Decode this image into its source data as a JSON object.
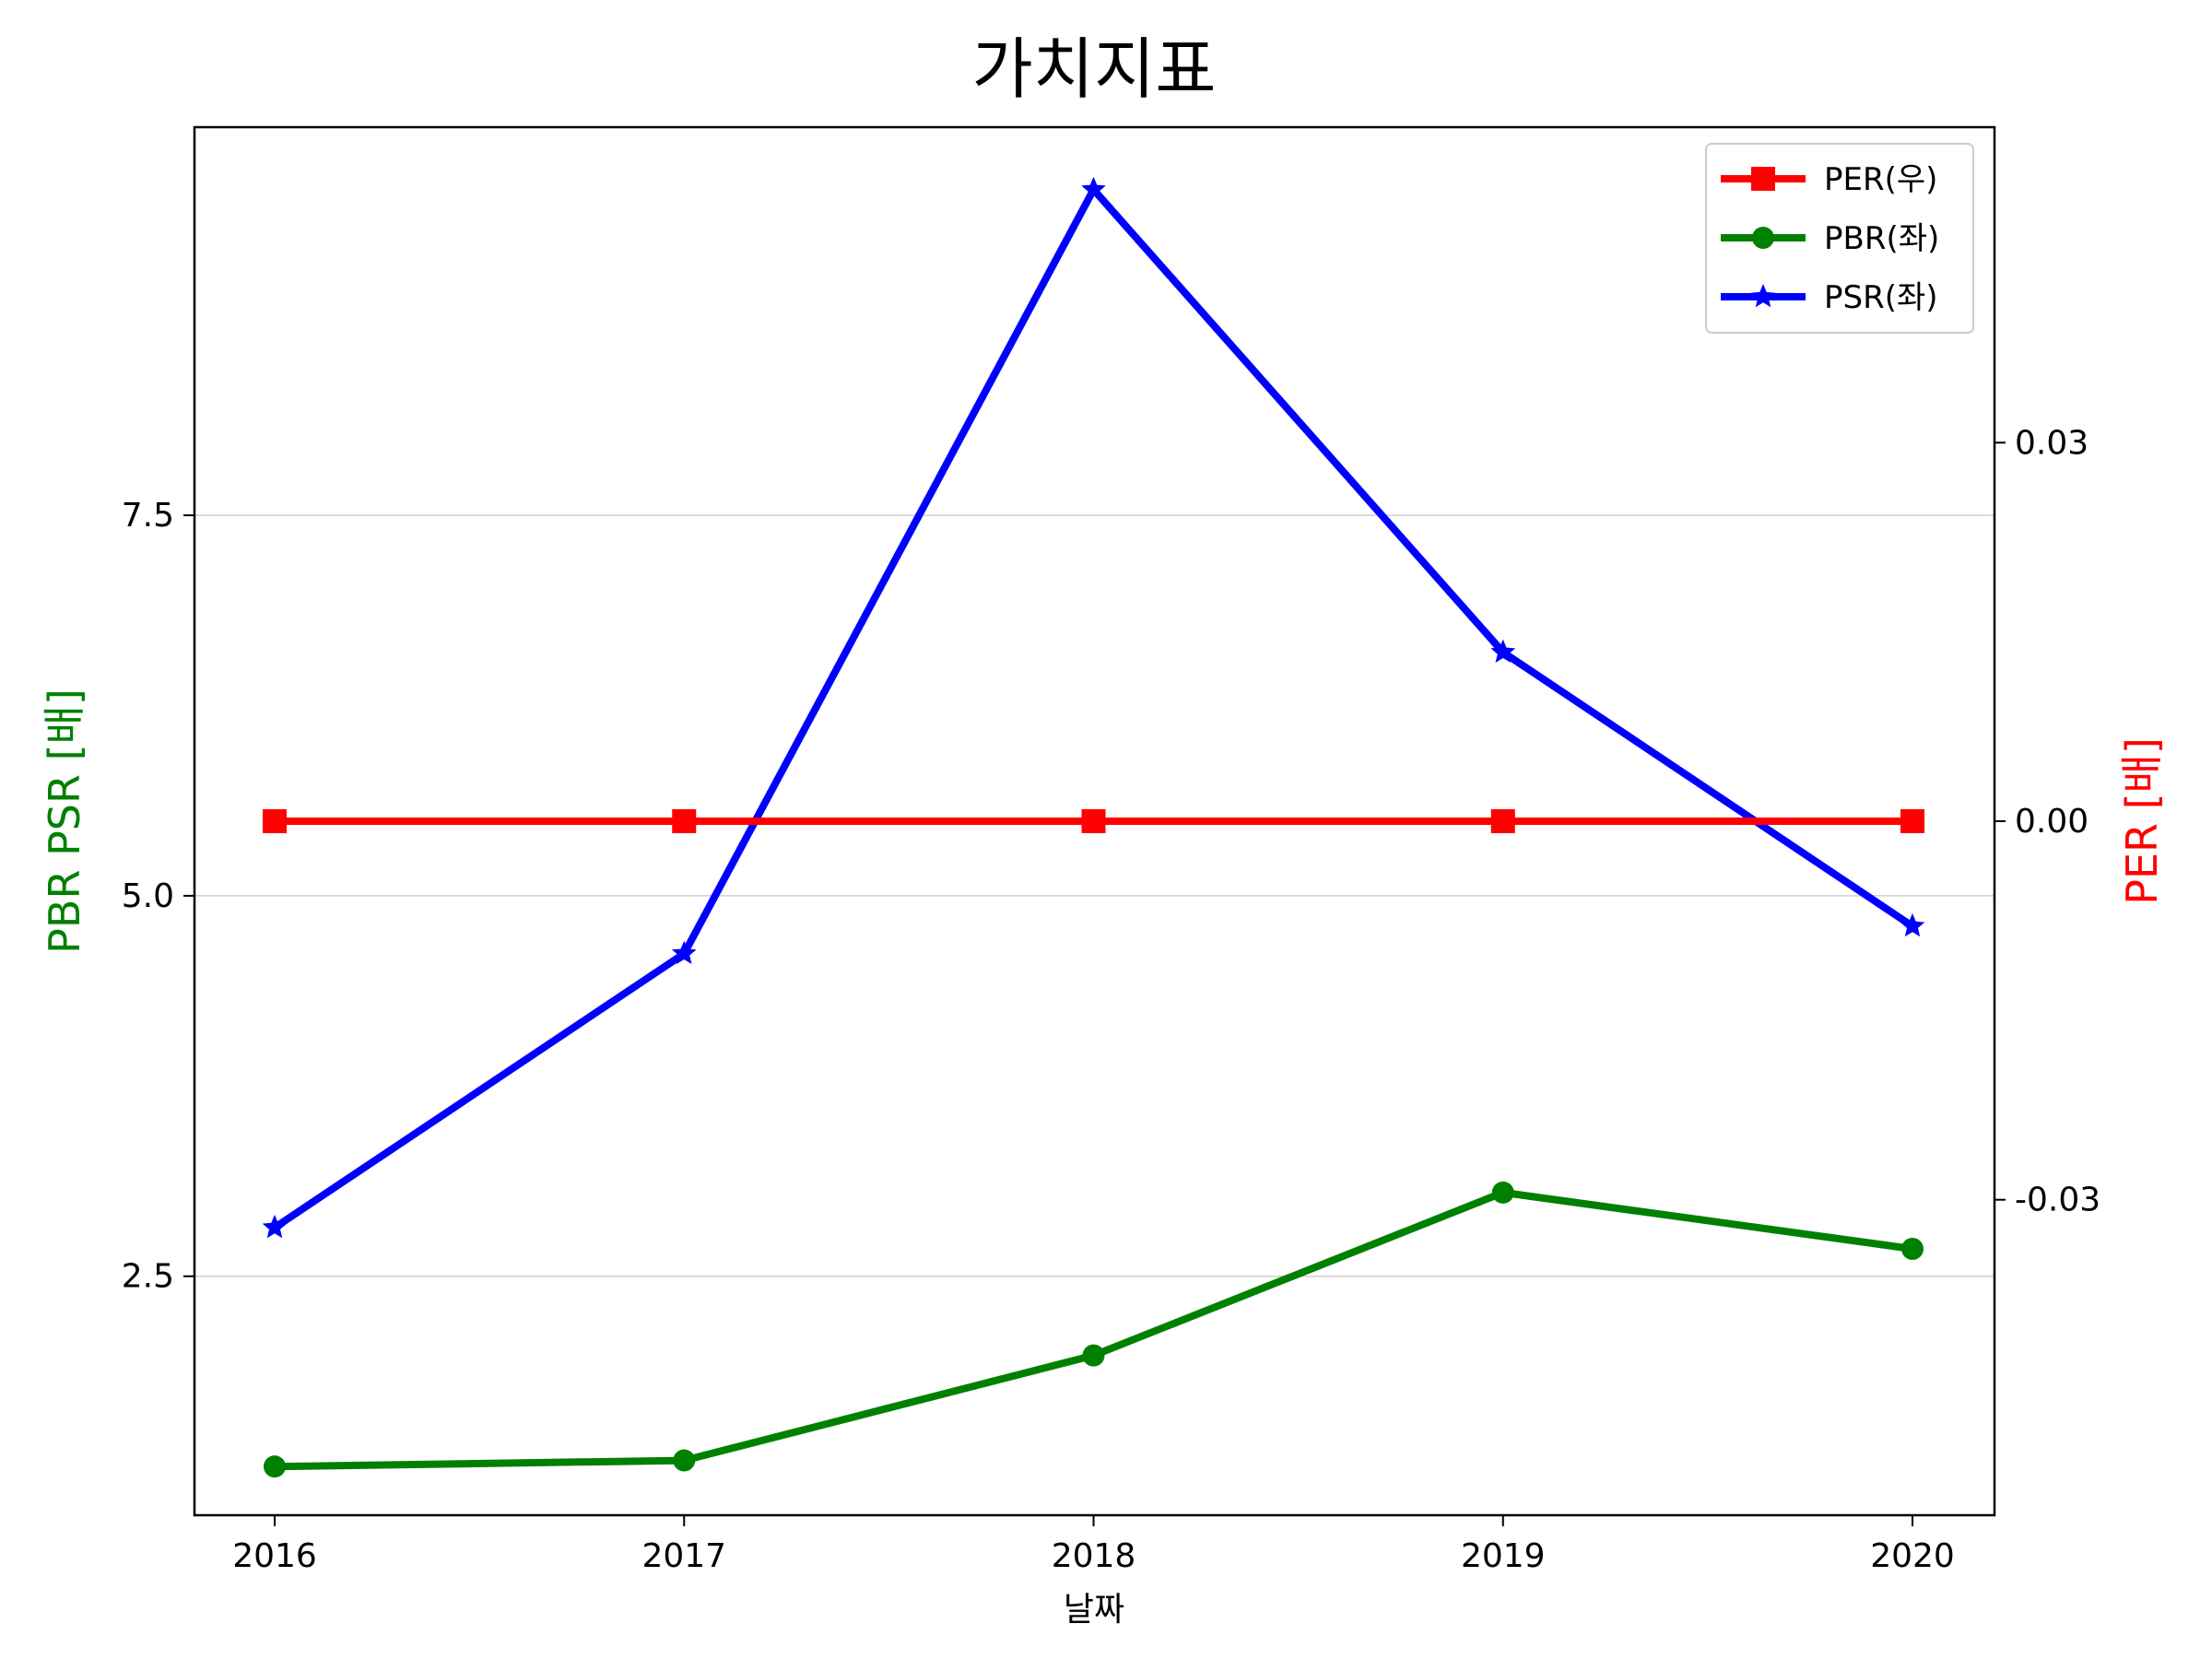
{
  "chart_data": {
    "type": "line",
    "title": "가치지표",
    "xlabel": "날짜",
    "ylabel_left": "PBR PSR [배]",
    "ylabel_right": "PER [배]",
    "ylabel_left_color": "#008000",
    "ylabel_right_color": "#ff0000",
    "categories": [
      "2016",
      "2017",
      "2018",
      "2019",
      "2020"
    ],
    "left_axis": {
      "ylim": [
        0.93,
        10.05
      ],
      "ticks": [
        2.5,
        5.0,
        7.5
      ],
      "tick_labels": [
        "2.5",
        "5.0",
        "7.5"
      ],
      "grid": true
    },
    "right_axis": {
      "ylim": [
        -0.055,
        0.055
      ],
      "ticks": [
        -0.03,
        0.0,
        0.03
      ],
      "tick_labels": [
        "-0.03",
        "0.00",
        "0.03"
      ]
    },
    "legend_position": "top-right",
    "series": [
      {
        "name": "PER(우)",
        "axis": "right",
        "color": "#ff0000",
        "marker": "square",
        "values": [
          0,
          0,
          0,
          0,
          0
        ]
      },
      {
        "name": "PBR(좌)",
        "axis": "left",
        "color": "#008000",
        "marker": "circle",
        "values": [
          1.25,
          1.29,
          1.98,
          3.05,
          2.68
        ]
      },
      {
        "name": "PSR(좌)",
        "axis": "left",
        "color": "#0000ff",
        "marker": "star",
        "values": [
          2.82,
          4.62,
          9.64,
          6.6,
          4.8
        ]
      }
    ]
  }
}
